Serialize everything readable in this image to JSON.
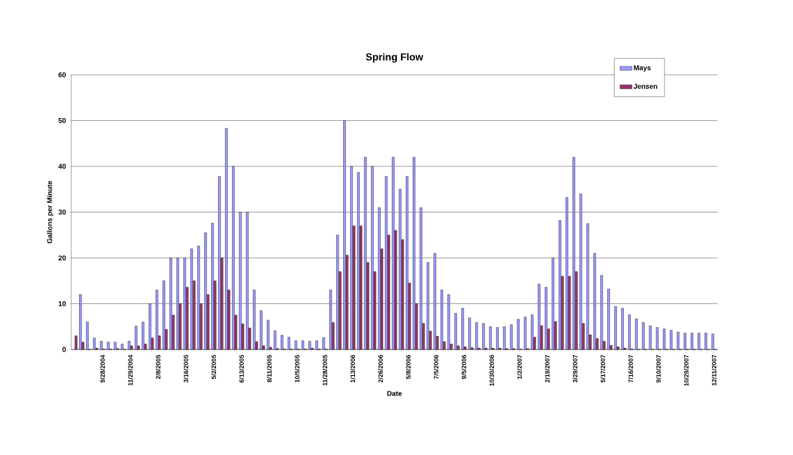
{
  "chart_data": {
    "type": "bar",
    "title": "Spring Flow",
    "xlabel": "Date",
    "ylabel": "Gallons per Minute",
    "categories": [
      null,
      null,
      null,
      null,
      "9/28/2004",
      null,
      null,
      null,
      "11/29/2004",
      null,
      null,
      null,
      "2/8/2005",
      null,
      null,
      null,
      "3/16/2005",
      null,
      null,
      null,
      "5/2/2005",
      null,
      null,
      null,
      "6/13/2005",
      null,
      null,
      null,
      "8/11/2005",
      null,
      null,
      null,
      "10/5/2005",
      null,
      null,
      null,
      "11/28/2005",
      null,
      null,
      null,
      "1/13/2006",
      null,
      null,
      null,
      "2/26/2006",
      null,
      null,
      null,
      "5/8/2006",
      null,
      null,
      null,
      "7/5/2006",
      null,
      null,
      null,
      "9/5/2006",
      null,
      null,
      null,
      "10/30/2006",
      null,
      null,
      null,
      "1/2/2007",
      null,
      null,
      null,
      "2/19/2007",
      null,
      null,
      null,
      "3/29/2007",
      null,
      null,
      null,
      "5/17/2007",
      null,
      null,
      null,
      "7/16/2007",
      null,
      null,
      null,
      "9/10/2007",
      null,
      null,
      null,
      "10/29/2007",
      null,
      null,
      null,
      "12/11/2007"
    ],
    "series": [
      {
        "name": "Mays",
        "color": "#9999ff",
        "values": [
          null,
          12,
          6,
          2.5,
          1.8,
          1.6,
          1.6,
          1.2,
          1.8,
          5.1,
          6,
          10,
          13,
          15,
          20,
          20,
          20,
          22,
          22.6,
          25.5,
          27.6,
          37.8,
          48.3,
          40,
          30,
          30,
          13,
          8.5,
          6.4,
          4.1,
          3.1,
          2.7,
          1.9,
          1.9,
          1.8,
          1.9,
          2.6,
          13,
          25,
          50,
          40,
          38.7,
          42,
          40,
          31,
          37.8,
          42,
          35,
          37.8,
          42,
          31,
          19,
          21,
          13,
          12,
          7.9,
          9,
          6.9,
          5.9,
          5.7,
          5,
          4.8,
          5,
          5.4,
          6.6,
          7.1,
          7.6,
          14.3,
          13.6,
          20,
          28.2,
          33.2,
          42,
          34,
          27.5,
          21,
          16.2,
          13.2,
          9.4,
          9,
          7.6,
          6.7,
          5.9,
          5.2,
          4.8,
          4.5,
          4.2,
          3.8,
          3.6,
          3.6,
          3.6,
          3.6,
          3.4
        ]
      },
      {
        "name": "Jensen",
        "color": "#993366",
        "values": [
          3,
          1.6,
          0,
          0.3,
          0.1,
          0.1,
          0.2,
          0,
          0.8,
          0.8,
          1.2,
          2.5,
          3,
          4.4,
          7.5,
          10,
          13.6,
          15,
          10,
          12,
          15,
          20,
          13,
          7.5,
          5.6,
          4.7,
          1.7,
          0.8,
          0.5,
          0.2,
          0.1,
          0.1,
          0.1,
          0.1,
          0.3,
          0.1,
          0.1,
          5.9,
          17,
          20.6,
          27,
          27,
          19,
          17,
          22,
          25,
          26,
          24,
          14.5,
          10,
          5.7,
          4,
          2.9,
          1.7,
          1.2,
          0.8,
          0.6,
          0.4,
          0.3,
          0.3,
          0.3,
          0.3,
          0.2,
          0.2,
          0.1,
          0.2,
          2.7,
          5.2,
          4.5,
          6.1,
          16,
          16,
          17,
          5.7,
          3.2,
          2.4,
          1.8,
          0.9,
          0.6,
          0.3,
          0.1,
          0,
          0,
          0,
          0,
          0,
          0,
          0,
          0,
          0,
          0,
          0,
          0
        ]
      }
    ],
    "ylim": [
      0,
      60
    ],
    "yticks": [
      0,
      10,
      20,
      30,
      40,
      50,
      60
    ],
    "grid": "y",
    "legend": "top right"
  }
}
